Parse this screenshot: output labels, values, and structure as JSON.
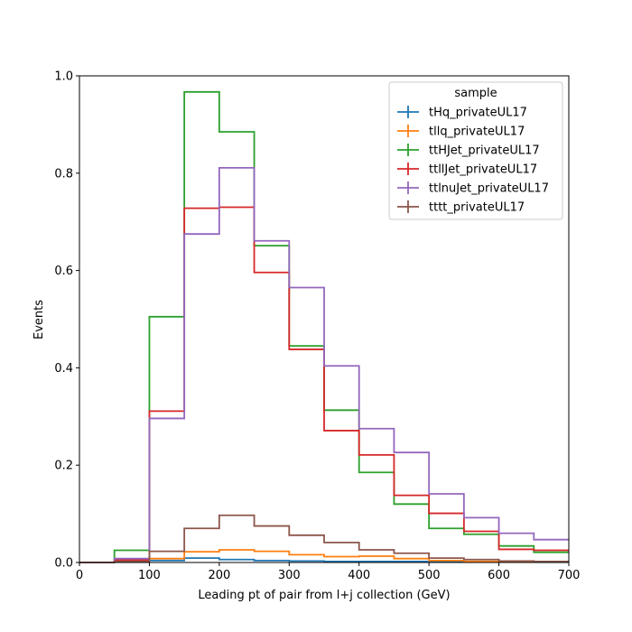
{
  "chart_data": {
    "type": "line",
    "xlabel": "Leading pt of pair from l+j collection (GeV)",
    "ylabel": "Events",
    "xlim": [
      0,
      700
    ],
    "ylim": [
      0,
      1.0
    ],
    "xticks": [
      "0",
      "100",
      "200",
      "300",
      "400",
      "500",
      "600",
      "700"
    ],
    "yticks": [
      "0.0",
      "0.2",
      "0.4",
      "0.6",
      "0.8",
      "1.0"
    ],
    "grid": false,
    "legend": {
      "title": "sample",
      "placement": "top-right"
    },
    "bin_edges": [
      0,
      50,
      100,
      150,
      200,
      250,
      300,
      350,
      400,
      450,
      500,
      550,
      600,
      650,
      700
    ],
    "series": [
      {
        "name": "tHq_privateUL17",
        "color": "#1f77b4",
        "values": [
          0.0,
          0.003,
          0.004,
          0.009,
          0.006,
          0.004,
          0.003,
          0.002,
          0.002,
          0.002,
          0.001,
          0.001,
          0.001,
          0.001
        ]
      },
      {
        "name": "tllq_privateUL17",
        "color": "#ff7f0e",
        "values": [
          0.0,
          0.004,
          0.008,
          0.022,
          0.026,
          0.023,
          0.016,
          0.012,
          0.013,
          0.008,
          0.004,
          0.002,
          0.001,
          0.001
        ]
      },
      {
        "name": "ttHJet_privateUL17",
        "color": "#2ca02c",
        "values": [
          0.0,
          0.025,
          0.505,
          0.967,
          0.885,
          0.651,
          0.445,
          0.313,
          0.185,
          0.12,
          0.07,
          0.058,
          0.034,
          0.021
        ]
      },
      {
        "name": "ttllJet_privateUL17",
        "color": "#d62728",
        "values": [
          0.0,
          0.005,
          0.311,
          0.728,
          0.73,
          0.596,
          0.438,
          0.271,
          0.221,
          0.138,
          0.101,
          0.064,
          0.027,
          0.025
        ]
      },
      {
        "name": "ttlnuJet_privateUL17",
        "color": "#9467bd",
        "values": [
          0.0,
          0.008,
          0.296,
          0.675,
          0.811,
          0.661,
          0.565,
          0.404,
          0.275,
          0.226,
          0.141,
          0.092,
          0.06,
          0.047
        ]
      },
      {
        "name": "tttt_privateUL17",
        "color": "#8c564b",
        "values": [
          0.0,
          0.002,
          0.023,
          0.07,
          0.097,
          0.075,
          0.056,
          0.041,
          0.026,
          0.019,
          0.009,
          0.006,
          0.003,
          0.002
        ]
      }
    ]
  }
}
